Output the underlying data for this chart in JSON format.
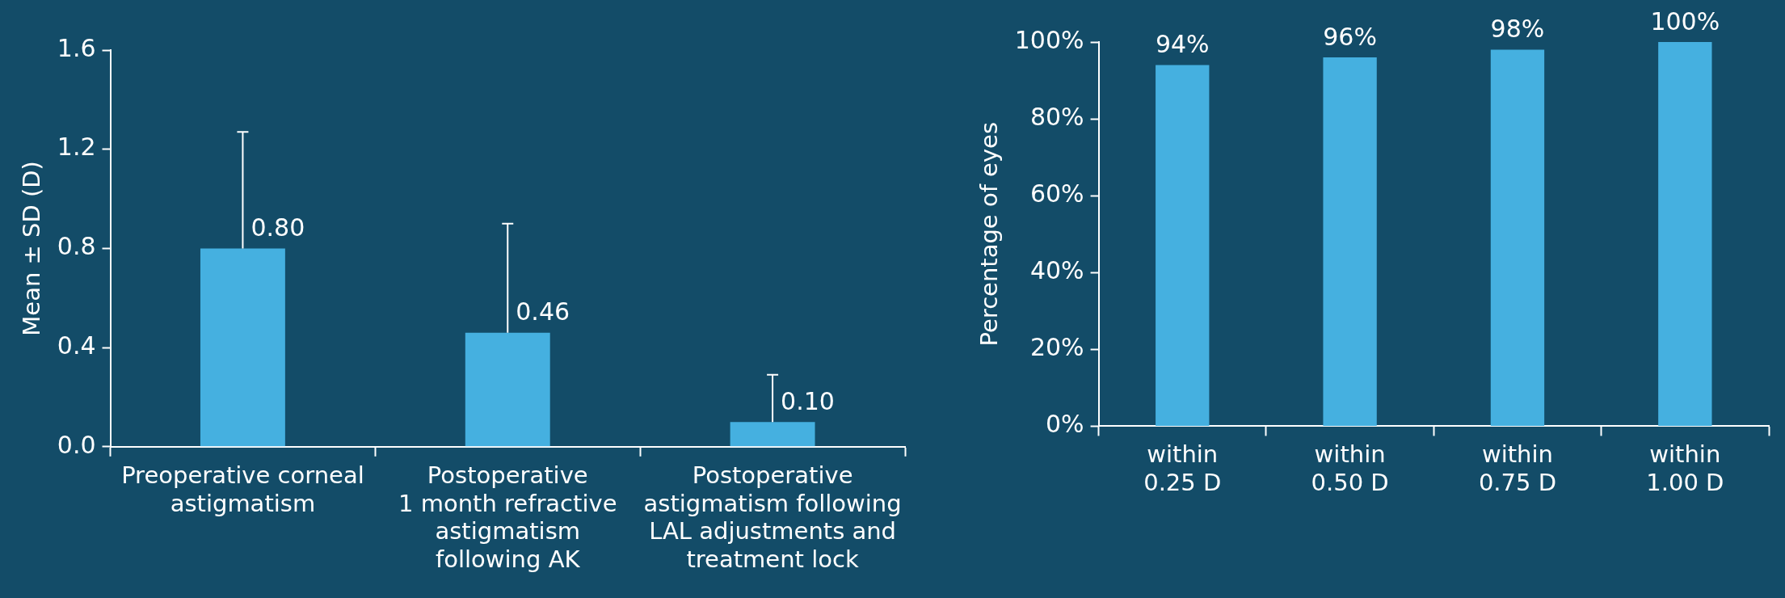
{
  "chart_data": [
    {
      "type": "bar",
      "ylabel": "Mean ± SD (D)",
      "categories": [
        "Preoperative corneal\nastigmatism",
        "Postoperative\n1 month refractive\nastigmatism\nfollowing AK",
        "Postoperative\nastigmatism following\nLAL adjustments and\ntreatment lock"
      ],
      "values": [
        0.8,
        0.46,
        0.1
      ],
      "errors": [
        0.47,
        0.44,
        0.19
      ],
      "value_labels": [
        "0.80",
        "0.46",
        "0.10"
      ],
      "color": "#45b0e0",
      "ylim": [
        0,
        1.6
      ],
      "yticks": [
        {
          "value": 0,
          "label": "0.0"
        },
        0.4,
        0.8,
        1.2,
        1.6
      ],
      "grid": false
    },
    {
      "type": "bar",
      "ylabel": "Percentage of eyes",
      "categories": [
        "within\n0.25 D",
        "within\n0.50 D",
        "within\n0.75 D",
        "within\n1.00 D"
      ],
      "values": [
        94,
        96,
        98,
        100
      ],
      "value_labels": [
        "94%",
        "96%",
        "98%",
        "100%"
      ],
      "color": "#45b0e0",
      "ylim": [
        0,
        100
      ],
      "yticks": [
        {
          "value": 0,
          "label": "0%"
        },
        {
          "value": 20,
          "label": "20%"
        },
        {
          "value": 40,
          "label": "40%"
        },
        {
          "value": 60,
          "label": "60%"
        },
        {
          "value": 80,
          "label": "80%"
        },
        {
          "value": 100,
          "label": "100%"
        }
      ],
      "grid": false
    }
  ]
}
